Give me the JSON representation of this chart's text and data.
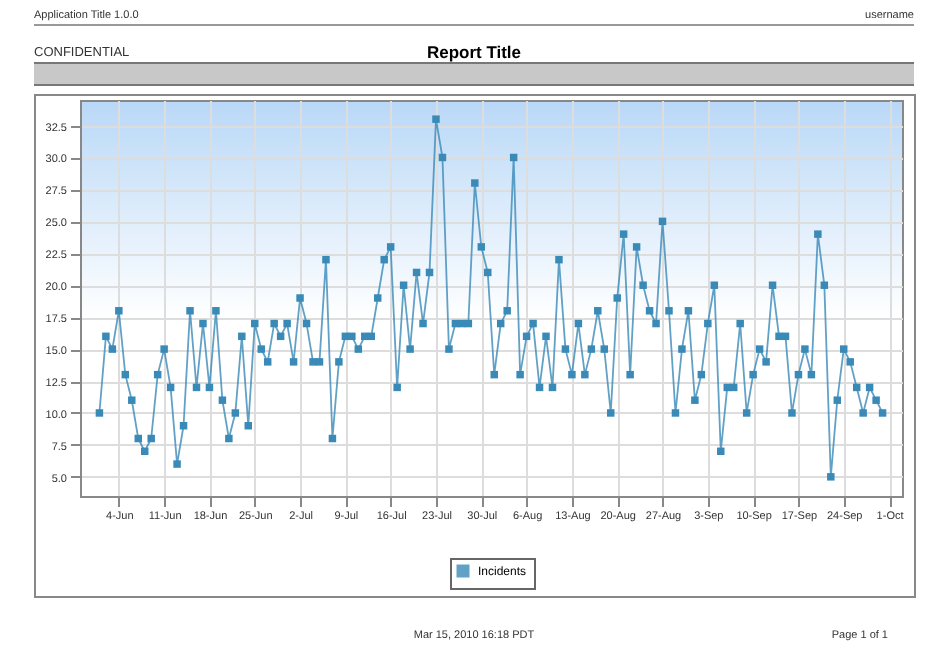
{
  "chart_data": {
    "type": "line",
    "title": "Report Title",
    "annotations": [
      "Application Title 1.0.0",
      "username",
      "CONFIDENTIAL",
      "Mar 15, 2010 16:18 PDT",
      "Page 1 of 1"
    ],
    "x": [
      "--06-01",
      "--06-02",
      "--06-03",
      "--06-04",
      "--06-05",
      "--06-06",
      "--06-07",
      "--06-08",
      "--06-09",
      "--06-10",
      "--06-11",
      "--06-12",
      "--06-13",
      "--06-14",
      "--06-15",
      "--06-16",
      "--06-17",
      "--06-18",
      "--06-19",
      "--06-20",
      "--06-21",
      "--06-22",
      "--06-23",
      "--06-24",
      "--06-25",
      "--06-26",
      "--06-27",
      "--06-28",
      "--06-29",
      "--06-30",
      "--07-01",
      "--07-02",
      "--07-03",
      "--07-04",
      "--07-05",
      "--07-06",
      "--07-07",
      "--07-08",
      "--07-09",
      "--07-10",
      "--07-11",
      "--07-12",
      "--07-13",
      "--07-14",
      "--07-15",
      "--07-16",
      "--07-17",
      "--07-18",
      "--07-19",
      "--07-20",
      "--07-21",
      "--07-22",
      "--07-23",
      "--07-24",
      "--07-25",
      "--07-26",
      "--07-27",
      "--07-28",
      "--07-29",
      "--07-30",
      "--07-31",
      "--08-01",
      "--08-02",
      "--08-03",
      "--08-04",
      "--08-05",
      "--08-06",
      "--08-07",
      "--08-08",
      "--08-09",
      "--08-10",
      "--08-11",
      "--08-12",
      "--08-13",
      "--08-14",
      "--08-15",
      "--08-16",
      "--08-17",
      "--08-18",
      "--08-19",
      "--08-20",
      "--08-21",
      "--08-22",
      "--08-23",
      "--08-24",
      "--08-25",
      "--08-26",
      "--08-27",
      "--08-28",
      "--08-29",
      "--08-30",
      "--08-31",
      "--09-01",
      "--09-02",
      "--09-03",
      "--09-04",
      "--09-05",
      "--09-06",
      "--09-07",
      "--09-08",
      "--09-09",
      "--09-10",
      "--09-11",
      "--09-12",
      "--09-13",
      "--09-14",
      "--09-15",
      "--09-16",
      "--09-17",
      "--09-18",
      "--09-19",
      "--09-20",
      "--09-21",
      "--09-22",
      "--09-23",
      "--09-24",
      "--09-25",
      "--09-26",
      "--09-27",
      "--09-28",
      "--09-29",
      "--09-30"
    ],
    "series": [
      {
        "name": "Incidents",
        "color": "#3a8ab8",
        "values": [
          10,
          16,
          15,
          18,
          13,
          11,
          8,
          7,
          8,
          13,
          15,
          12,
          6,
          9,
          18,
          12,
          17,
          12,
          18,
          11,
          8,
          10,
          16,
          9,
          17,
          15,
          14,
          17,
          16,
          17,
          14,
          19,
          17,
          14,
          14,
          22,
          8,
          14,
          16,
          16,
          15,
          16,
          16,
          19,
          22,
          23,
          12,
          20,
          15,
          21,
          17,
          21,
          33,
          30,
          15,
          17,
          17,
          17,
          28,
          23,
          21,
          13,
          17,
          18,
          30,
          13,
          16,
          17,
          12,
          16,
          12,
          22,
          15,
          13,
          17,
          13,
          15,
          18,
          15,
          10,
          19,
          24,
          13,
          23,
          20,
          18,
          17,
          25,
          18,
          10,
          15,
          18,
          11,
          13,
          17,
          20,
          7,
          12,
          12,
          17,
          10,
          13,
          15,
          14,
          20,
          16,
          16,
          10,
          13,
          15,
          13,
          24,
          20,
          5,
          11,
          15,
          14,
          12,
          10,
          12,
          11,
          10
        ]
      }
    ],
    "xlim": [
      "--05-29",
      "--10-03"
    ],
    "xticks": [
      {
        "value": "--06-04",
        "label": "4-Jun"
      },
      {
        "value": "--06-11",
        "label": "11-Jun"
      },
      {
        "value": "--06-18",
        "label": "18-Jun"
      },
      {
        "value": "--06-25",
        "label": "25-Jun"
      },
      {
        "value": "--07-02",
        "label": "2-Jul"
      },
      {
        "value": "--07-09",
        "label": "9-Jul"
      },
      {
        "value": "--07-16",
        "label": "16-Jul"
      },
      {
        "value": "--07-23",
        "label": "23-Jul"
      },
      {
        "value": "--07-30",
        "label": "30-Jul"
      },
      {
        "value": "--08-06",
        "label": "6-Aug"
      },
      {
        "value": "--08-13",
        "label": "13-Aug"
      },
      {
        "value": "--08-20",
        "label": "20-Aug"
      },
      {
        "value": "--08-27",
        "label": "27-Aug"
      },
      {
        "value": "--09-03",
        "label": "3-Sep"
      },
      {
        "value": "--09-10",
        "label": "10-Sep"
      },
      {
        "value": "--09-17",
        "label": "17-Sep"
      },
      {
        "value": "--09-24",
        "label": "24-Sep"
      },
      {
        "value": "--10-01",
        "label": "1-Oct"
      }
    ],
    "ylim": [
      3.5,
      34.5
    ],
    "yticks": [
      {
        "value": 5,
        "label": "5.0"
      },
      {
        "value": 7.5,
        "label": "7.5"
      },
      {
        "value": 10,
        "label": "10.0"
      },
      {
        "value": 12.5,
        "label": "12.5"
      },
      {
        "value": 15,
        "label": "15.0"
      },
      {
        "value": 17.5,
        "label": "17.5"
      },
      {
        "value": 20,
        "label": "20.0"
      },
      {
        "value": 22.5,
        "label": "22.5"
      },
      {
        "value": 25,
        "label": "25.0"
      },
      {
        "value": 27.5,
        "label": "27.5"
      },
      {
        "value": 30,
        "label": "30.0"
      },
      {
        "value": 32.5,
        "label": "32.5"
      }
    ],
    "grid": true,
    "legend": "bottom",
    "marker": "square",
    "line_style": "solid"
  }
}
